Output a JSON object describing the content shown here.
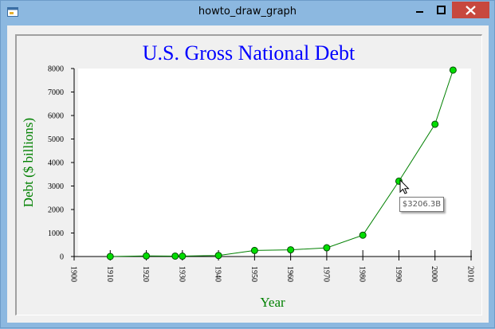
{
  "window": {
    "title": "howto_draw_graph"
  },
  "icons": {
    "app": "form-icon",
    "minimize": "minimize-icon",
    "maximize": "maximize-icon",
    "close": "close-icon",
    "cursor": "arrow-cursor-icon"
  },
  "colors": {
    "title": "#0000ff",
    "axis_label": "#008000",
    "series": "#008000",
    "marker": "#00dd00",
    "plot_bg": "#ffffff"
  },
  "tooltip": {
    "text": "$3206.3B"
  },
  "chart_data": {
    "type": "line",
    "title": "U.S. Gross National Debt",
    "xlabel": "Year",
    "ylabel": "Debt ($ billions)",
    "xlim": [
      1900,
      2010
    ],
    "ylim": [
      0,
      8000
    ],
    "x_ticks": [
      "1900",
      "1910",
      "1920",
      "1930",
      "1940",
      "1950",
      "1960",
      "1970",
      "1980",
      "1990",
      "2000",
      "2010"
    ],
    "y_ticks": [
      "0",
      "1000",
      "2000",
      "3000",
      "4000",
      "5000",
      "6000",
      "7000",
      "8000"
    ],
    "grid": false,
    "x": [
      1910,
      1920,
      1928,
      1930,
      1940,
      1950,
      1960,
      1970,
      1980,
      1990,
      2000,
      2005
    ],
    "y": [
      1.1,
      25,
      18,
      16,
      43,
      257,
      286,
      371,
      908,
      3206.3,
      5629,
      7933
    ]
  }
}
